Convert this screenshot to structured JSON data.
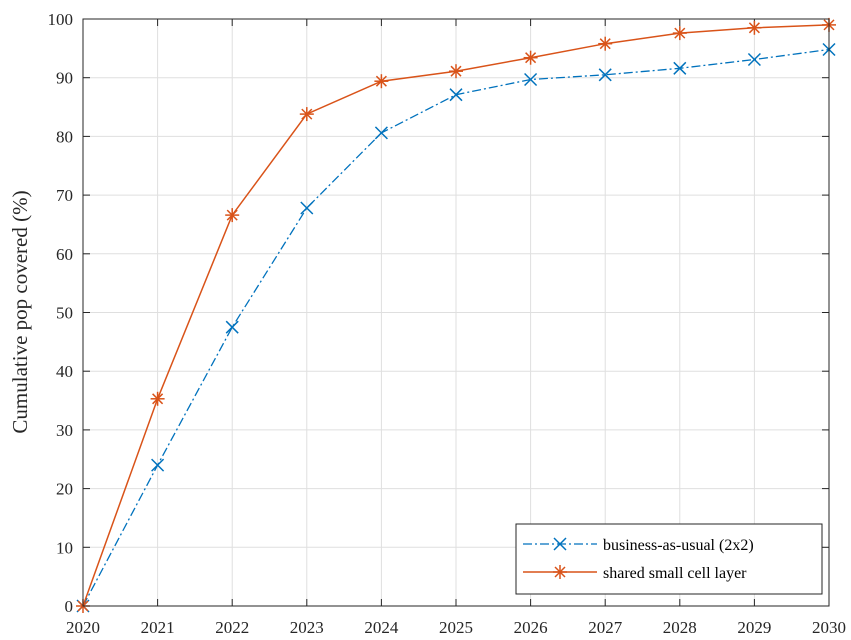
{
  "chart_data": {
    "type": "line",
    "title": "",
    "xlabel": "",
    "ylabel": "Cumulative pop covered (%)",
    "x": [
      2020,
      2021,
      2022,
      2023,
      2024,
      2025,
      2026,
      2027,
      2028,
      2029,
      2030
    ],
    "xlim": [
      2020,
      2030
    ],
    "ylim": [
      0,
      100
    ],
    "xticks": [
      "2020",
      "2021",
      "2022",
      "2023",
      "2024",
      "2025",
      "2026",
      "2027",
      "2028",
      "2029",
      "2030"
    ],
    "yticks": [
      "0",
      "10",
      "20",
      "30",
      "40",
      "50",
      "60",
      "70",
      "80",
      "90",
      "100"
    ],
    "grid": true,
    "legend_position": "bottom-right",
    "series": [
      {
        "name": "business-as-usual (2x2)",
        "values": [
          0,
          24,
          47.5,
          67.8,
          80.6,
          87.1,
          89.7,
          90.5,
          91.6,
          93.1,
          94.8
        ],
        "color": "#0072BD",
        "line_style": "dash-dot",
        "marker": "x-icon"
      },
      {
        "name": "shared small cell layer",
        "values": [
          0,
          35.3,
          66.6,
          83.8,
          89.4,
          91.1,
          93.4,
          95.8,
          97.6,
          98.5,
          99.0
        ],
        "color": "#D95319",
        "line_style": "solid",
        "marker": "asterisk-icon"
      }
    ]
  }
}
